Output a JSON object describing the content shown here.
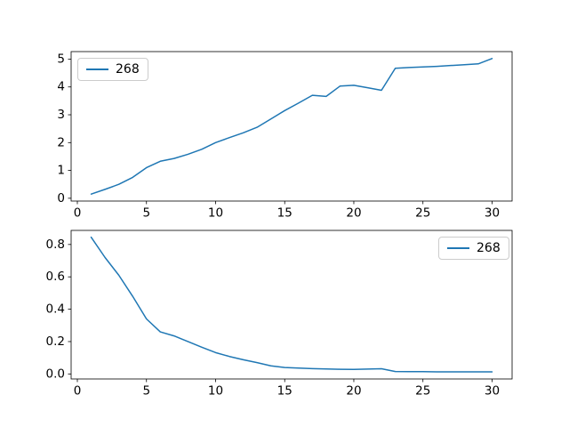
{
  "figure": {
    "background": "#ffffff",
    "spine_color": "#000000",
    "tick_label_color": "#000000"
  },
  "chart_data": [
    {
      "type": "line",
      "title": "",
      "xlabel": "",
      "ylabel": "",
      "grid": false,
      "line_color": "#1f77b4",
      "legend": {
        "label": "268",
        "position": "upper-left"
      },
      "x": [
        1,
        2,
        3,
        4,
        5,
        6,
        7,
        8,
        9,
        10,
        11,
        12,
        13,
        14,
        15,
        16,
        17,
        18,
        19,
        20,
        21,
        22,
        23,
        24,
        25,
        26,
        27,
        28,
        29,
        30
      ],
      "series": [
        {
          "name": "268",
          "values": [
            0.15,
            0.32,
            0.5,
            0.75,
            1.1,
            1.33,
            1.43,
            1.58,
            1.76,
            2.0,
            2.18,
            2.35,
            2.55,
            2.85,
            3.15,
            3.42,
            3.7,
            3.66,
            4.03,
            4.06,
            3.97,
            3.88,
            4.67,
            4.7,
            4.72,
            4.74,
            4.77,
            4.8,
            4.83,
            5.02
          ]
        }
      ],
      "x_ticks": [
        0,
        5,
        10,
        15,
        20,
        25,
        30
      ],
      "x_tick_labels": [
        "0",
        "5",
        "10",
        "15",
        "20",
        "25",
        "30"
      ],
      "y_ticks": [
        0,
        1,
        2,
        3,
        4,
        5
      ],
      "y_tick_labels": [
        "0",
        "1",
        "2",
        "3",
        "4",
        "5"
      ],
      "xlim": [
        -0.45,
        31.45
      ],
      "ylim": [
        -0.1,
        5.27
      ]
    },
    {
      "type": "line",
      "title": "",
      "xlabel": "",
      "ylabel": "",
      "grid": false,
      "line_color": "#1f77b4",
      "legend": {
        "label": "268",
        "position": "upper-right"
      },
      "x": [
        1,
        2,
        3,
        4,
        5,
        6,
        7,
        8,
        9,
        10,
        11,
        12,
        13,
        14,
        15,
        16,
        17,
        18,
        19,
        20,
        21,
        22,
        23,
        24,
        25,
        26,
        27,
        28,
        29,
        30
      ],
      "series": [
        {
          "name": "268",
          "values": [
            0.845,
            0.72,
            0.61,
            0.48,
            0.34,
            0.26,
            0.235,
            0.2,
            0.165,
            0.132,
            0.108,
            0.088,
            0.07,
            0.05,
            0.04,
            0.036,
            0.033,
            0.031,
            0.029,
            0.028,
            0.03,
            0.032,
            0.015,
            0.014,
            0.014,
            0.013,
            0.013,
            0.013,
            0.013,
            0.013
          ]
        }
      ],
      "x_ticks": [
        0,
        5,
        10,
        15,
        20,
        25,
        30
      ],
      "x_tick_labels": [
        "0",
        "5",
        "10",
        "15",
        "20",
        "25",
        "30"
      ],
      "y_ticks": [
        0.0,
        0.2,
        0.4,
        0.6,
        0.8
      ],
      "y_tick_labels": [
        "0.0",
        "0.2",
        "0.4",
        "0.6",
        "0.8"
      ],
      "xlim": [
        -0.45,
        31.45
      ],
      "ylim": [
        -0.031,
        0.887
      ]
    }
  ]
}
